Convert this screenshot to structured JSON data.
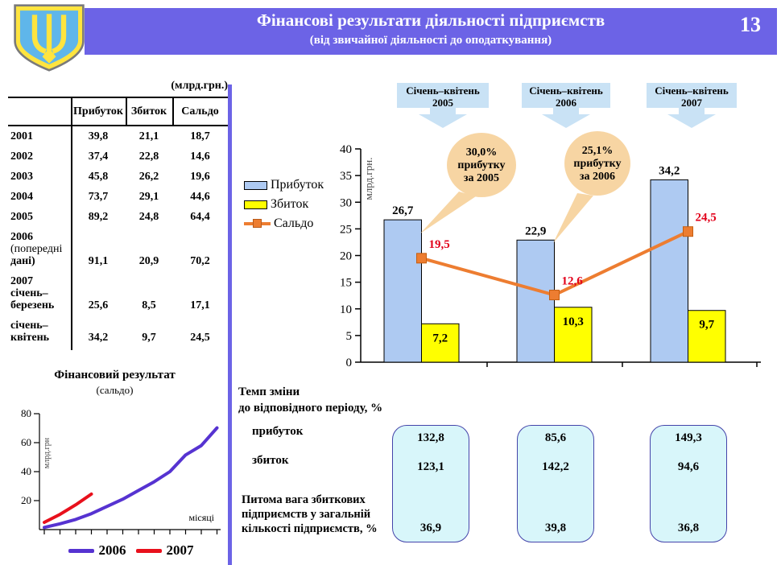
{
  "header": {
    "title": "Фінансові результати діяльності підприємств",
    "subtitle": "(від звичайної діяльності до оподаткування)",
    "page_number": "13"
  },
  "table": {
    "units_label": "(млрд.грн.)",
    "columns": [
      "Прибуток",
      "Збиток",
      "Сальдо"
    ],
    "rows": [
      {
        "label": "2001",
        "values": [
          "39,8",
          "21,1",
          "18,7"
        ]
      },
      {
        "label": "2002",
        "values": [
          "37,4",
          "22,8",
          "14,6"
        ]
      },
      {
        "label": "2003",
        "values": [
          "45,8",
          "26,2",
          "19,6"
        ]
      },
      {
        "label": "2004",
        "values": [
          "73,7",
          "29,1",
          "44,6"
        ]
      },
      {
        "label": "2005",
        "values": [
          "89,2",
          "24,8",
          "64,4"
        ]
      },
      {
        "label": "2006\n(попередні\nдані)",
        "values": [
          "91,1",
          "20,9",
          "70,2"
        ]
      },
      {
        "label": "2007\nсічень–\nберезень",
        "values": [
          "25,6",
          "8,5",
          "17,1"
        ]
      },
      {
        "label": "січень–\nквітень",
        "values": [
          "34,2",
          "9,7",
          "24,5"
        ]
      }
    ]
  },
  "period_headers": [
    {
      "line1": "Січень–квітень",
      "line2": "2005"
    },
    {
      "line1": "Січень–квітень",
      "line2": "2006"
    },
    {
      "line1": "Січень–квітень",
      "line2": "2007"
    }
  ],
  "chart_data": [
    {
      "type": "bar",
      "categories": [
        "Січень–квітень 2005",
        "Січень–квітень 2006",
        "Січень–квітень 2007"
      ],
      "ylabel": "млрд.грн.",
      "ylim": [
        0,
        40
      ],
      "ytick_step": 5,
      "legend_position": "left",
      "series": [
        {
          "name": "Прибуток",
          "type": "bar",
          "values": [
            26.7,
            22.9,
            34.2
          ],
          "labels": [
            "26,7",
            "22,9",
            "34,2"
          ],
          "color": "#aecaf2"
        },
        {
          "name": "Збиток",
          "type": "bar",
          "values": [
            7.2,
            10.3,
            9.7
          ],
          "labels": [
            "7,2",
            "10,3",
            "9,7"
          ],
          "color": "#ffff00"
        },
        {
          "name": "Сальдо",
          "type": "line",
          "values": [
            19.5,
            12.6,
            24.5
          ],
          "labels": [
            "19,5",
            "12,6",
            "24,5"
          ],
          "color": "#ed7d31"
        }
      ],
      "annotations": [
        {
          "text_lines": [
            "30,0%",
            "прибутку",
            "за 2005"
          ]
        },
        {
          "text_lines": [
            "25,1%",
            "прибутку",
            "за 2006"
          ]
        }
      ]
    },
    {
      "type": "line",
      "title": "Фінансовий результат",
      "subtitle": "(сальдо)",
      "ylabel": "млрд.грн",
      "xlabel": "місяці",
      "ylim": [
        0,
        80
      ],
      "ytick_step": 20,
      "x": [
        1,
        2,
        3,
        4,
        5,
        6,
        7,
        8,
        9,
        10,
        11,
        12
      ],
      "series": [
        {
          "name": "2006",
          "values": [
            1.5,
            4,
            7,
            11,
            16,
            21,
            27,
            33,
            40,
            51.5,
            58,
            70.2
          ],
          "color": "#5633d1"
        },
        {
          "name": "2007",
          "values": [
            5,
            10.5,
            17.1,
            24.5
          ],
          "color": "#e8101c"
        }
      ]
    }
  ],
  "temp_change": {
    "title": "Темп зміни\nдо відповідного періоду, %",
    "row_labels": [
      "прибуток",
      "збиток"
    ],
    "share_label": "Питома вага збиткових\nпідприємств у загальній\nкількості підприємств, %",
    "columns": [
      {
        "profit": "132,8",
        "loss": "123,1",
        "share": "36,9"
      },
      {
        "profit": "85,6",
        "loss": "142,2",
        "share": "39,8"
      },
      {
        "profit": "149,3",
        "loss": "94,6",
        "share": "36,8"
      }
    ]
  },
  "colors": {
    "accent_purple": "#6c63e6",
    "arrow_blue": "#c9e2f5",
    "callout_tan": "#f7d5a3",
    "value_red": "#e2001a",
    "box_cyan": "#d8f6fa"
  }
}
